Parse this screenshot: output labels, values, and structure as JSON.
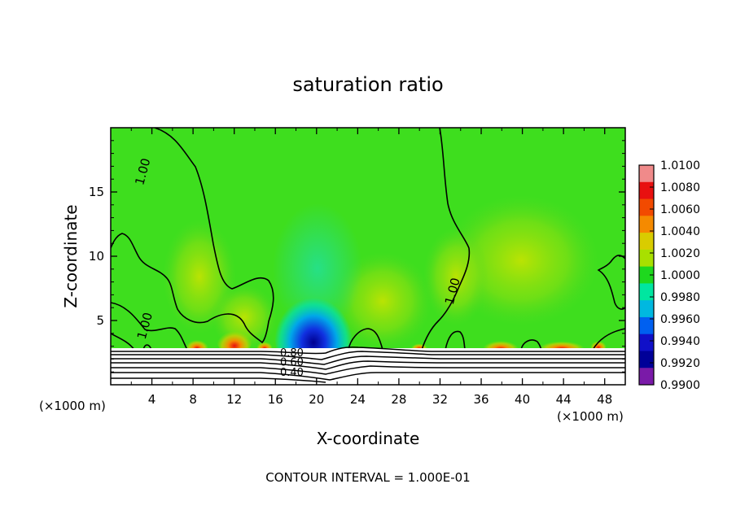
{
  "chart_data": {
    "type": "heatmap",
    "title": "saturation ratio",
    "xlabel": "X-coordinate",
    "ylabel": "Z-coordinate",
    "x_unit": "(×1000 m)",
    "x_unit_right": "(×1000 m)",
    "xlim": [
      0,
      50
    ],
    "ylim": [
      0,
      20
    ],
    "x_ticks": [
      4,
      8,
      12,
      16,
      20,
      24,
      28,
      32,
      36,
      40,
      44,
      48
    ],
    "y_ticks": [
      5,
      10,
      15
    ],
    "grid": false,
    "legend": "right",
    "colorbar": {
      "labels": [
        "1.0100",
        "1.0080",
        "1.0060",
        "1.0040",
        "1.0020",
        "1.0000",
        "0.9980",
        "0.9960",
        "0.9940",
        "0.9920",
        "0.9900"
      ],
      "min": 0.99,
      "max": 1.01,
      "colors": [
        "#f08a8a",
        "#e81010",
        "#f24a00",
        "#f58a00",
        "#d9cc00",
        "#a8e000",
        "#1ed81e",
        "#00e6a0",
        "#00b8e0",
        "#0060f0",
        "#1010c8",
        "#000098",
        "#7a1aa8"
      ]
    },
    "contour_labels": [
      {
        "text": "1.00",
        "x": 3.5,
        "z": 16.5
      },
      {
        "text": "1.00",
        "x": 3.7,
        "z": 4.5
      },
      {
        "text": "1.00",
        "x": 33.6,
        "z": 7.2
      },
      {
        "text": "0.80",
        "x": 17.6,
        "z": 2.2
      },
      {
        "text": "0.60",
        "x": 17.6,
        "z": 1.5
      },
      {
        "text": "0.40",
        "x": 17.6,
        "z": 0.7
      }
    ],
    "footer": "CONTOUR INTERVAL = 1.000E-01"
  }
}
